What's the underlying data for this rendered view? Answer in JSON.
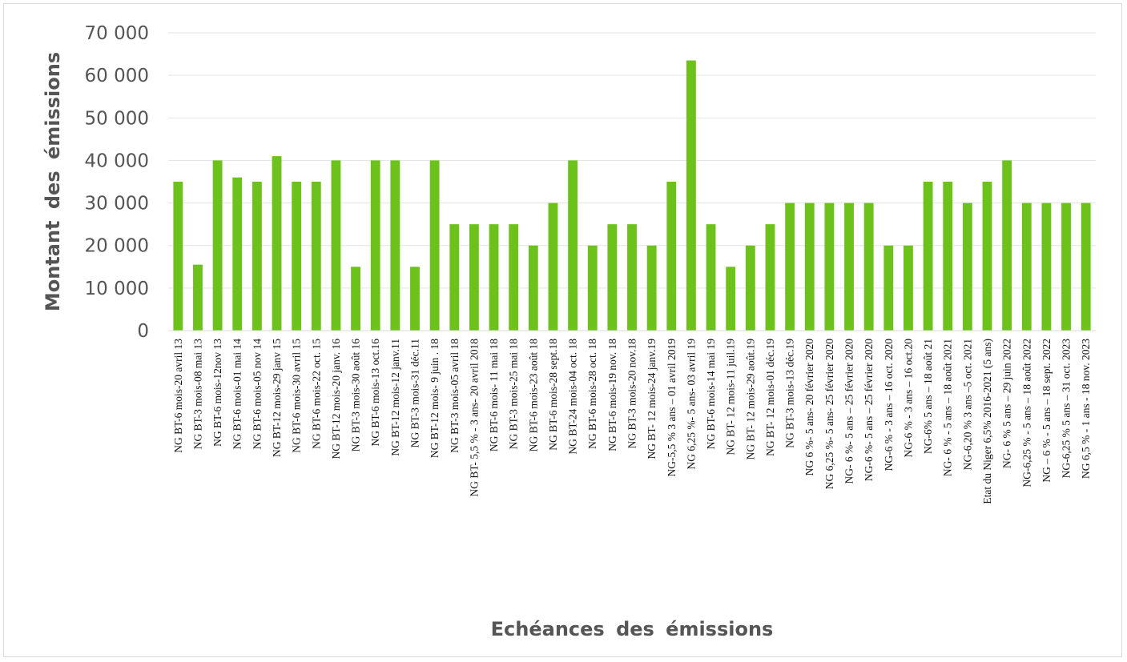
{
  "chart_data": {
    "type": "bar",
    "title": "",
    "xlabel": "Echéances des émissions",
    "ylabel": "Montant des émissions",
    "ylim": [
      0,
      70000
    ],
    "yticks": [
      0,
      10000,
      20000,
      30000,
      40000,
      50000,
      60000,
      70000
    ],
    "ytick_labels": [
      "0",
      "10 000",
      "20 000",
      "30 000",
      "40 000",
      "50 000",
      "60 000",
      "70 000"
    ],
    "grid": true,
    "legend": "none",
    "bar_color": "#6cc11a",
    "categories": [
      "NG BT-6 mois-20 avril 13",
      "NG BT-3 mois-08 mai 13",
      "NG BT-6 mois-12nov 13",
      "NG BT-6 mois-01 mai 14",
      "NG BT-6 mois-05 nov 14",
      "NG BT-12 mois-29 janv 15",
      "NG BT-6 mois-30 avril 15",
      "NG BT-6 mois-22 oct. 15",
      "NG BT-12 mois-20 janv. 16",
      "NG BT-3 mois-30 août 16",
      "NG BT-6 mois-13 oct.16",
      "NG BT-12 mois-12 janv.11",
      "NG BT-3 mois-31 déc.11",
      "NG BT-12 mois- 9 juin . 18",
      "NG BT-3 mois-05 avril 18",
      "NG BT- 5,5 % - 3 ans- 20 avril 2018",
      "NG BT-6 mois- 11 mai 18",
      "NG BT-3 mois-25 mai 18",
      "NG BT-6 mois-23 août 18",
      "NG BT-6 mois-28 sept.18",
      "NG BT-24 mois-04 oct. 18",
      "NG BT-6 mois-28 oct. 18",
      "NG BT-6 mois-19 nov. 18",
      "NG BT-3 mois-20 nov.18",
      "NG BT- 12 mois-24 janv.19",
      "NG-5,5 % 3 ans – 01 avril 2019",
      "NG 6,25 %- 5 ans- 03 avril 19",
      "NG BT-6 mois-14 mai 19",
      "NG BT- 12 mois-11 juil.19",
      "NG BT- 12 mois-29 août.19",
      "NG BT- 12 mois-01 déc.19",
      "NG BT-3 mois-13 déc.19",
      "NG 6 %- 5 ans- 20 février 2020",
      "NG 6,25 %- 5 ans- 25 février 2020",
      "NG- 6 %- 5 ans – 25 février 2020",
      "NG-6 %- 5 ans – 25 février 2020",
      "NG-6 % - 3 ans – 16 oct. 2020",
      "NG-6 % - 3 ans – 16 oct.20",
      "NG-6% 5 ans – 18 août 21",
      "NG- 6 % - 5 ans – 18 août 2021",
      "NG-6,20 % 3 ans –5 oct. 2021",
      "Etat du Niger 6,5% 2016-2021 (5 ans)",
      "NG- 6 % 5 ans – 29 juin 2022",
      "NG-6,25 % - 5 ans – 18 août 2022",
      "NG – 6 % - 5 ans – 18 sept. 2022",
      "NG-6,25 % 5 ans – 31 oct. 2023",
      "NG 6,5 % - 1 ans - 18 nov. 2023"
    ],
    "values": [
      35000,
      15500,
      40000,
      36000,
      35000,
      41000,
      35000,
      35000,
      40000,
      15000,
      40000,
      40000,
      15000,
      40000,
      25000,
      25000,
      25000,
      25000,
      20000,
      30000,
      40000,
      20000,
      25000,
      25000,
      20000,
      35000,
      63500,
      25000,
      15000,
      20000,
      25000,
      30000,
      30000,
      30000,
      30000,
      30000,
      20000,
      20000,
      35000,
      35000,
      30000,
      35000,
      40000,
      30000,
      30000,
      30000,
      30000
    ]
  }
}
